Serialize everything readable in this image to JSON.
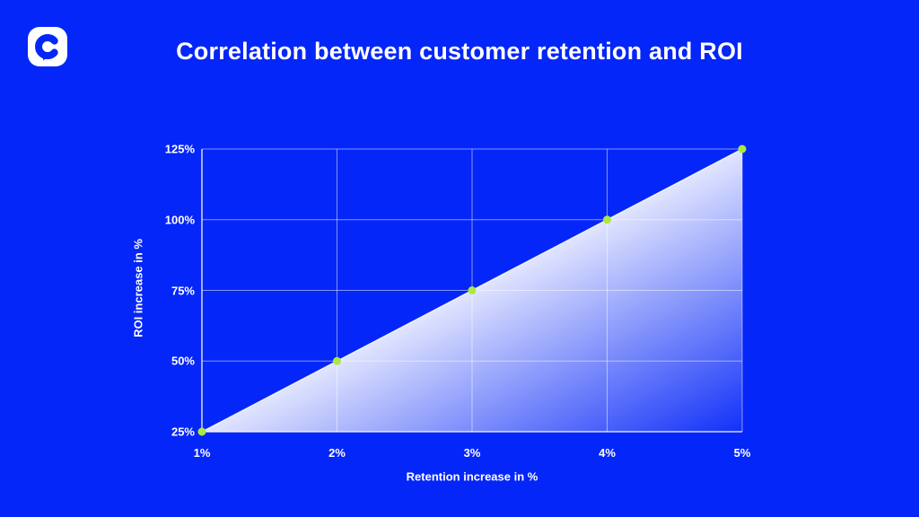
{
  "header": {
    "logo_letter": "C"
  },
  "theme": {
    "background_color": "#0526F8",
    "text_color": "#FFFFFF",
    "logo_glyph_color": "#0526F8",
    "logo_tile_color": "#FFFFFF"
  },
  "chart_data": {
    "type": "area",
    "title": "Correlation between customer retention and ROI",
    "xlabel": "Retention increase in %",
    "ylabel": "ROI increase in %",
    "x": [
      1,
      2,
      3,
      4,
      5
    ],
    "x_tick_labels": [
      "1%",
      "2%",
      "3%",
      "4%",
      "5%"
    ],
    "series": [
      {
        "name": "ROI increase",
        "values": [
          25,
          50,
          75,
          100,
          125
        ]
      }
    ],
    "y_ticks": [
      25,
      50,
      75,
      100,
      125
    ],
    "y_tick_labels": [
      "25%",
      "50%",
      "75%",
      "100%",
      "125%"
    ],
    "xlim": [
      1,
      5
    ],
    "ylim": [
      25,
      125
    ],
    "grid": true,
    "legend": false,
    "colors": {
      "marker": "#ABE93E",
      "grid_line": "rgba(255,255,255,0.5)",
      "axis_line": "rgba(255,255,255,0.95)",
      "line_stroke": "rgba(255,255,255,0.85)",
      "area_fill_near_line": "rgba(255,255,255,0.88)",
      "area_fill_far": "rgba(255,255,255,0.05)"
    }
  }
}
